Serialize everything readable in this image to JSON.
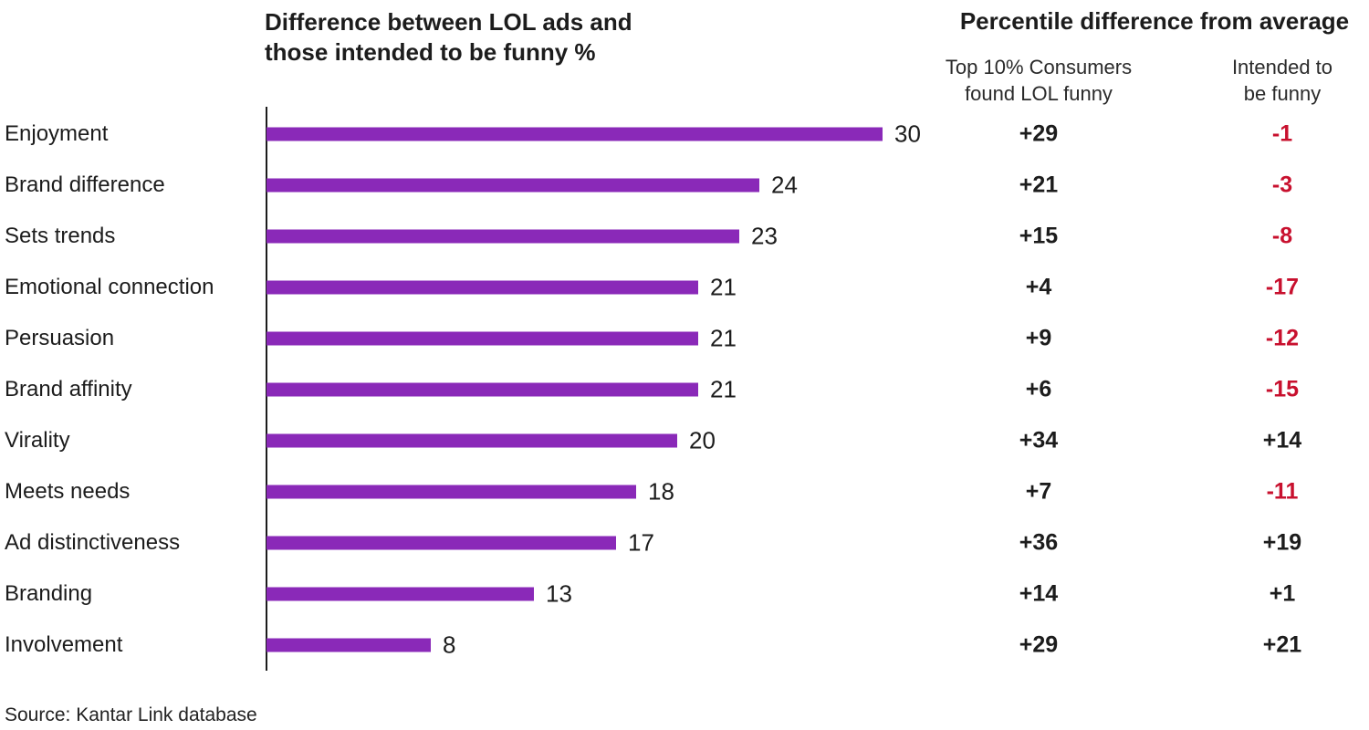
{
  "title": "Difference between LOL ads and\nthose intended to be funny %",
  "table_header": {
    "title": "Percentile difference from average",
    "col1": "Top 10% Consumers\nfound LOL funny",
    "col2": "Intended to\nbe funny"
  },
  "source": "Source: Kantar Link database",
  "colors": {
    "bar": "#8a29b8",
    "positive_text": "#1c1c1c",
    "negative_text": "#c8102e"
  },
  "axis_max": 30,
  "rows": [
    {
      "label": "Enjoyment",
      "value": 30,
      "col1": "+29",
      "col2": "-1"
    },
    {
      "label": "Brand difference",
      "value": 24,
      "col1": "+21",
      "col2": "-3"
    },
    {
      "label": "Sets trends",
      "value": 23,
      "col1": "+15",
      "col2": "-8"
    },
    {
      "label": "Emotional connection",
      "value": 21,
      "col1": "+4",
      "col2": "-17"
    },
    {
      "label": "Persuasion",
      "value": 21,
      "col1": "+9",
      "col2": "-12"
    },
    {
      "label": "Brand affinity",
      "value": 21,
      "col1": "+6",
      "col2": "-15"
    },
    {
      "label": "Virality",
      "value": 20,
      "col1": "+34",
      "col2": "+14"
    },
    {
      "label": "Meets needs",
      "value": 18,
      "col1": "+7",
      "col2": "-11"
    },
    {
      "label": "Ad distinctiveness",
      "value": 17,
      "col1": "+36",
      "col2": "+19"
    },
    {
      "label": "Branding",
      "value": 13,
      "col1": "+14",
      "col2": "+1"
    },
    {
      "label": "Involvement",
      "value": 8,
      "col1": "+29",
      "col2": "+21"
    }
  ],
  "chart_data": {
    "type": "bar",
    "orientation": "horizontal",
    "title": "Difference between LOL ads and those intended to be funny %",
    "categories": [
      "Enjoyment",
      "Brand difference",
      "Sets trends",
      "Emotional connection",
      "Persuasion",
      "Brand affinity",
      "Virality",
      "Meets needs",
      "Ad distinctiveness",
      "Branding",
      "Involvement"
    ],
    "values": [
      30,
      24,
      23,
      21,
      21,
      21,
      20,
      18,
      17,
      13,
      8
    ],
    "xlim": [
      0,
      30
    ],
    "grid": false,
    "bar_color": "#8a29b8",
    "data_labels": true,
    "companion_table": {
      "title": "Percentile difference from average",
      "columns": [
        "Top 10% Consumers found LOL funny",
        "Intended to be funny"
      ],
      "rows": [
        [
          29,
          -1
        ],
        [
          21,
          -3
        ],
        [
          15,
          -8
        ],
        [
          4,
          -17
        ],
        [
          9,
          -12
        ],
        [
          6,
          -15
        ],
        [
          34,
          14
        ],
        [
          7,
          -11
        ],
        [
          36,
          19
        ],
        [
          14,
          1
        ],
        [
          29,
          21
        ]
      ],
      "negative_color": "#c8102e"
    },
    "source": "Source: Kantar Link database"
  }
}
